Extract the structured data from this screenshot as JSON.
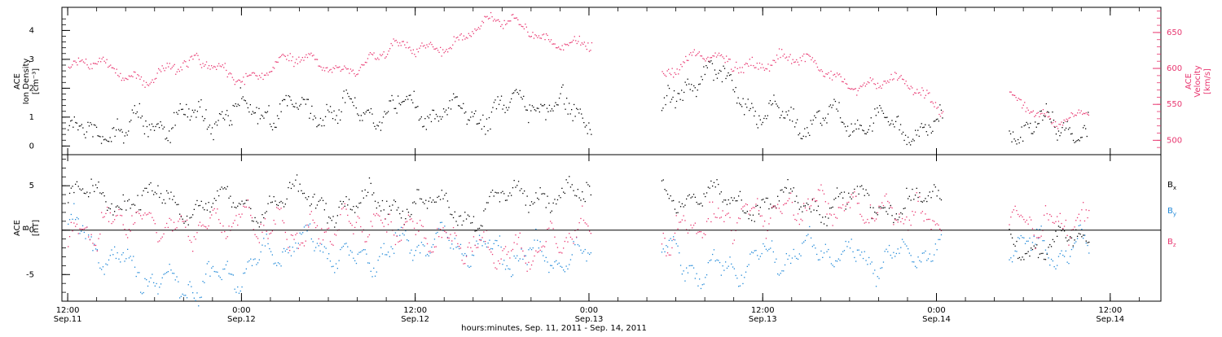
{
  "chart_data": [
    {
      "type": "scatter",
      "panel": "top",
      "ylabel_left": [
        "ACE",
        "Ion Density",
        "[cm⁻³]"
      ],
      "ylabel_right": [
        "ACE",
        "Velocity",
        "[km/s]"
      ],
      "ylim_left": [
        -0.3,
        4.8
      ],
      "ylim_right": [
        480,
        685
      ],
      "yticks_left": [
        "0",
        "1",
        "2",
        "3",
        "4"
      ],
      "yticks_right": [
        "500",
        "550",
        "600",
        "650"
      ],
      "colors": {
        "density": "#000000",
        "velocity": "#e8356f"
      },
      "segments_hours": [
        [
          0,
          36.2
        ],
        [
          41,
          60.4
        ],
        [
          65,
          70.5
        ]
      ],
      "density_profile": {
        "x": [
          0,
          4,
          8,
          12,
          16,
          20,
          24,
          28,
          32,
          36,
          41,
          44,
          48,
          52,
          56,
          60,
          65,
          68,
          70.5
        ],
        "y": [
          0.4,
          0.6,
          1.0,
          1.2,
          1.3,
          1.2,
          1.3,
          1.0,
          1.6,
          1.0,
          1.0,
          2.8,
          1.1,
          0.9,
          0.8,
          0.5,
          0.6,
          0.8,
          0.5
        ]
      },
      "velocity_profile": {
        "x": [
          0,
          4,
          8,
          12,
          16,
          20,
          24,
          28,
          32,
          36,
          41,
          44,
          48,
          52,
          56,
          60,
          65,
          68,
          70.5
        ],
        "y": [
          600,
          595,
          600,
          598,
          605,
          610,
          625,
          655,
          660,
          625,
          595,
          610,
          615,
          598,
          580,
          555,
          550,
          540,
          535
        ]
      }
    },
    {
      "type": "scatter",
      "panel": "bottom",
      "ylabel": [
        "ACE",
        "B",
        "[nT]"
      ],
      "ylim": [
        -8,
        8.5
      ],
      "yticks": [
        "-5",
        "0",
        "5"
      ],
      "series": [
        {
          "name": "Bx",
          "label_main": "B",
          "label_sub": "x",
          "color": "#000000",
          "profile": {
            "x": [
              0,
              4,
              8,
              12,
              16,
              20,
              24,
              28,
              32,
              36,
              41,
              44,
              48,
              52,
              56,
              60,
              65,
              68,
              70.5
            ],
            "y": [
              3.5,
              3.8,
              3.0,
              2.8,
              3.5,
              3.0,
              3.2,
              2.0,
              4.5,
              3.5,
              4.5,
              3.5,
              3.0,
              3.0,
              3.2,
              3.0,
              -1.5,
              -1.8,
              -1.0
            ]
          }
        },
        {
          "name": "By",
          "label_main": "B",
          "label_sub": "y",
          "color": "#1f88d8",
          "profile": {
            "x": [
              0,
              4,
              8,
              12,
              16,
              20,
              24,
              28,
              32,
              36,
              41,
              44,
              48,
              52,
              56,
              60,
              65,
              68,
              70.5
            ],
            "y": [
              0.5,
              -4.0,
              -6.5,
              -4.5,
              -1.0,
              -3.5,
              -1.0,
              -2.0,
              -3.0,
              -3.0,
              -2.0,
              -5.0,
              -3.0,
              -2.0,
              -3.5,
              -2.0,
              -1.0,
              -2.5,
              -1.5
            ]
          }
        },
        {
          "name": "Bz",
          "label_main": "B",
          "label_sub": "z",
          "color": "#e8356f",
          "profile": {
            "x": [
              0,
              4,
              8,
              12,
              16,
              20,
              24,
              28,
              32,
              36,
              41,
              44,
              48,
              52,
              56,
              60,
              65,
              68,
              70.5
            ],
            "y": [
              -1.0,
              1.5,
              0.0,
              1.5,
              -0.5,
              1.0,
              0.0,
              -2.0,
              -2.5,
              0.5,
              -1.0,
              1.0,
              2.0,
              3.0,
              2.0,
              1.5,
              1.0,
              0.5,
              1.5
            ]
          }
        }
      ]
    }
  ],
  "x_axis": {
    "range_hours": [
      -0.4,
      75.5
    ],
    "ticks": [
      {
        "hours": 0,
        "time": "12:00",
        "date": "Sep.11"
      },
      {
        "hours": 12,
        "time": "0:00",
        "date": "Sep.12"
      },
      {
        "hours": 24,
        "time": "12:00",
        "date": "Sep.12"
      },
      {
        "hours": 36,
        "time": "0:00",
        "date": "Sep.13"
      },
      {
        "hours": 48,
        "time": "12:00",
        "date": "Sep.13"
      },
      {
        "hours": 60,
        "time": "0:00",
        "date": "Sep.14"
      },
      {
        "hours": 72,
        "time": "12:00",
        "date": "Sep.14"
      }
    ],
    "title": "hours:minutes, Sep. 11, 2011 - Sep. 14, 2011"
  }
}
